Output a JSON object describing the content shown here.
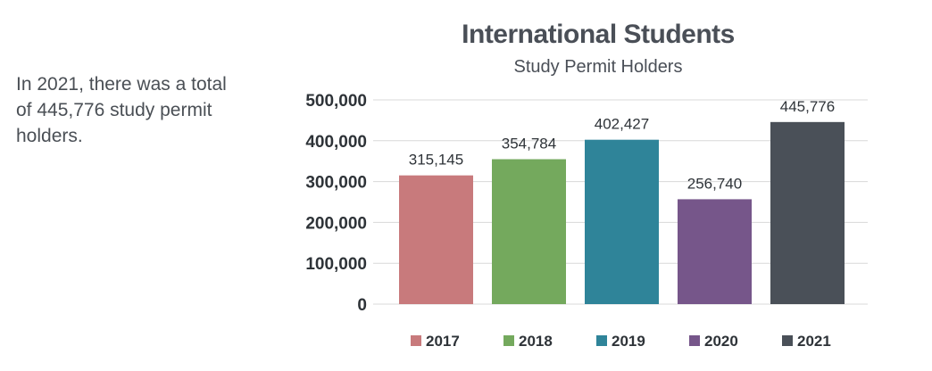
{
  "side_note": "In 2021, there was a total of 445,776 study permit holders.",
  "chart_data": {
    "type": "bar",
    "title": "International Students",
    "subtitle": "Study Permit Holders",
    "xlabel": "",
    "ylabel": "",
    "categories": [
      "2017",
      "2018",
      "2019",
      "2020",
      "2021"
    ],
    "values": [
      315145,
      354784,
      402427,
      256740,
      445776
    ],
    "data_labels": [
      "315,145",
      "354,784",
      "402,427",
      "256,740",
      "445,776"
    ],
    "colors": [
      "#c87a7c",
      "#74a95d",
      "#2f8499",
      "#76568a",
      "#4a5058"
    ],
    "ylim": [
      0,
      500000
    ],
    "yticks": [
      0,
      100000,
      200000,
      300000,
      400000,
      500000
    ],
    "ytick_labels": [
      "0",
      "100,000",
      "200,000",
      "300,000",
      "400,000",
      "500,000"
    ],
    "grid": true,
    "legend_position": "bottom"
  }
}
